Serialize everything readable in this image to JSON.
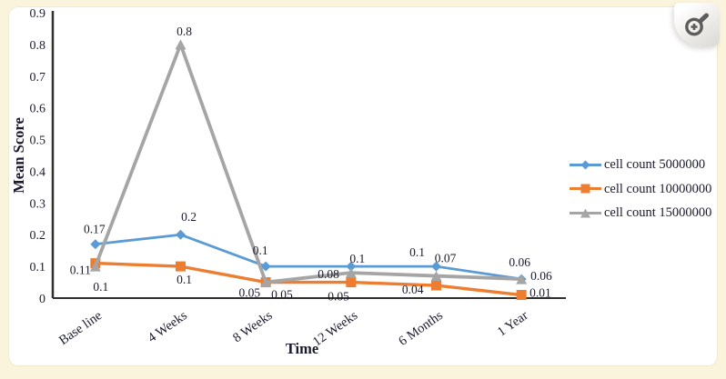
{
  "viewer": {
    "zoom_button_icon": "magnifier-plus"
  },
  "chart_data": {
    "type": "line",
    "title": "",
    "xlabel": "Time",
    "ylabel": "Mean Score",
    "categories": [
      "Base line",
      "4 Weeks",
      "8 Weeks",
      "12 Weeks",
      "6 Months",
      "1 Year"
    ],
    "series": [
      {
        "name": "cell count 5000000",
        "color": "#5b9bd5",
        "marker": "diamond",
        "values": [
          0.17,
          0.2,
          0.1,
          0.1,
          0.1,
          0.06
        ]
      },
      {
        "name": "cell count 10000000",
        "color": "#ed7d31",
        "marker": "square",
        "values": [
          0.11,
          0.1,
          0.05,
          0.05,
          0.04,
          0.01
        ]
      },
      {
        "name": "cell count 15000000",
        "color": "#a5a5a5",
        "marker": "triangle",
        "values": [
          0.1,
          0.8,
          0.05,
          0.08,
          0.07,
          0.06
        ]
      }
    ],
    "ylim": [
      0,
      0.9
    ],
    "ytick_step": 0.1,
    "grid": false,
    "legend_position": "right",
    "data_labels": true
  },
  "colors": {
    "background": "#fbf4dd",
    "card": "#ffffff",
    "text": "#1a1a2e",
    "axis": "#2f2f2f"
  }
}
